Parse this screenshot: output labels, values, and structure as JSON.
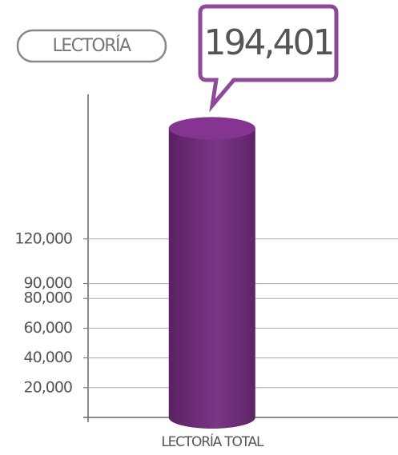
{
  "chart_data": {
    "type": "bar",
    "title": "LECTORÍA",
    "categories": [
      "LECTORÍA TOTAL"
    ],
    "values": [
      194401
    ],
    "value_labels": [
      "194,401"
    ],
    "color": "#6b2a74",
    "ylim": [
      0,
      200000
    ],
    "yticks": [
      {
        "value": 20000,
        "label": "20,000"
      },
      {
        "value": 40000,
        "label": "40,000"
      },
      {
        "value": 60000,
        "label": "60,000"
      },
      {
        "value": 80000,
        "label": "80,000"
      },
      {
        "value": 90000,
        "label": "90,000"
      },
      {
        "value": 120000,
        "label": "120,000"
      }
    ],
    "grid": true
  }
}
